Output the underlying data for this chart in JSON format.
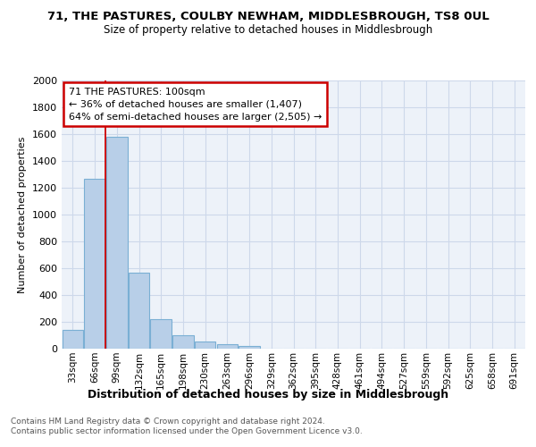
{
  "title": "71, THE PASTURES, COULBY NEWHAM, MIDDLESBROUGH, TS8 0UL",
  "subtitle": "Size of property relative to detached houses in Middlesbrough",
  "xlabel": "Distribution of detached houses by size in Middlesbrough",
  "ylabel": "Number of detached properties",
  "footer": "Contains HM Land Registry data © Crown copyright and database right 2024.\nContains public sector information licensed under the Open Government Licence v3.0.",
  "bin_labels": [
    "33sqm",
    "66sqm",
    "99sqm",
    "132sqm",
    "165sqm",
    "198sqm",
    "230sqm",
    "263sqm",
    "296sqm",
    "329sqm",
    "362sqm",
    "395sqm",
    "428sqm",
    "461sqm",
    "494sqm",
    "527sqm",
    "559sqm",
    "592sqm",
    "625sqm",
    "658sqm",
    "691sqm"
  ],
  "bar_values": [
    140,
    1270,
    1580,
    570,
    220,
    97,
    55,
    32,
    18,
    0,
    0,
    0,
    0,
    0,
    0,
    0,
    0,
    0,
    0,
    0,
    0
  ],
  "bar_color": "#b8cfe8",
  "bar_edge_color": "#7aafd4",
  "red_line_x": 1.5,
  "ylim": [
    0,
    2000
  ],
  "yticks": [
    0,
    200,
    400,
    600,
    800,
    1000,
    1200,
    1400,
    1600,
    1800,
    2000
  ],
  "annotation_text": "71 THE PASTURES: 100sqm\n← 36% of detached houses are smaller (1,407)\n64% of semi-detached houses are larger (2,505) →",
  "annotation_box_facecolor": "#ffffff",
  "annotation_box_edgecolor": "#cc0000",
  "grid_color": "#cdd8ea",
  "background_color": "#edf2f9"
}
